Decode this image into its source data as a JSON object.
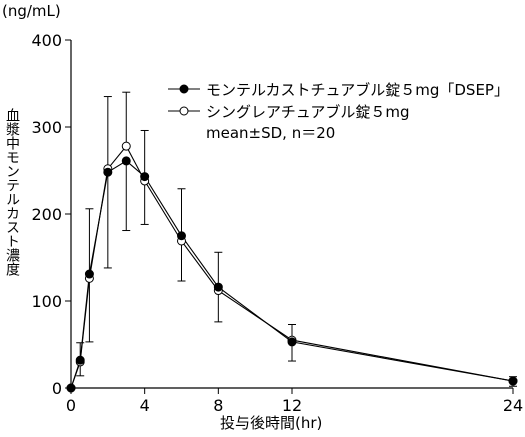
{
  "chart_data": {
    "type": "line",
    "unit_label": "(ng/mL)",
    "ylabel": "血漿中モンテルカスト濃度",
    "xlabel": "投与後時間(hr)",
    "x": [
      0,
      0.5,
      1,
      2,
      3,
      4,
      6,
      8,
      12,
      24
    ],
    "xticks": [
      0,
      4,
      8,
      12,
      24
    ],
    "yticks": [
      0,
      100,
      200,
      300,
      400
    ],
    "xlim": [
      0,
      24
    ],
    "ylim": [
      0,
      400
    ],
    "series": [
      {
        "name": "モンテルカストチュアブル錠５mg「DSEP」",
        "marker": "filled-circle",
        "values": [
          0,
          32,
          131,
          248,
          261,
          243,
          175,
          116,
          53,
          8
        ],
        "errors": [
          0,
          18,
          78,
          110,
          80,
          55,
          52,
          40,
          22,
          6
        ]
      },
      {
        "name": "シングレアチュアブル錠５mg",
        "marker": "open-circle",
        "values": [
          0,
          30,
          126,
          252,
          278,
          238,
          169,
          112,
          55,
          8
        ],
        "errors": [
          0,
          22,
          80,
          83,
          62,
          58,
          60,
          44,
          18,
          5
        ]
      }
    ],
    "note": "mean±SD, n＝20",
    "grid": false,
    "legend_position": "top-right"
  }
}
